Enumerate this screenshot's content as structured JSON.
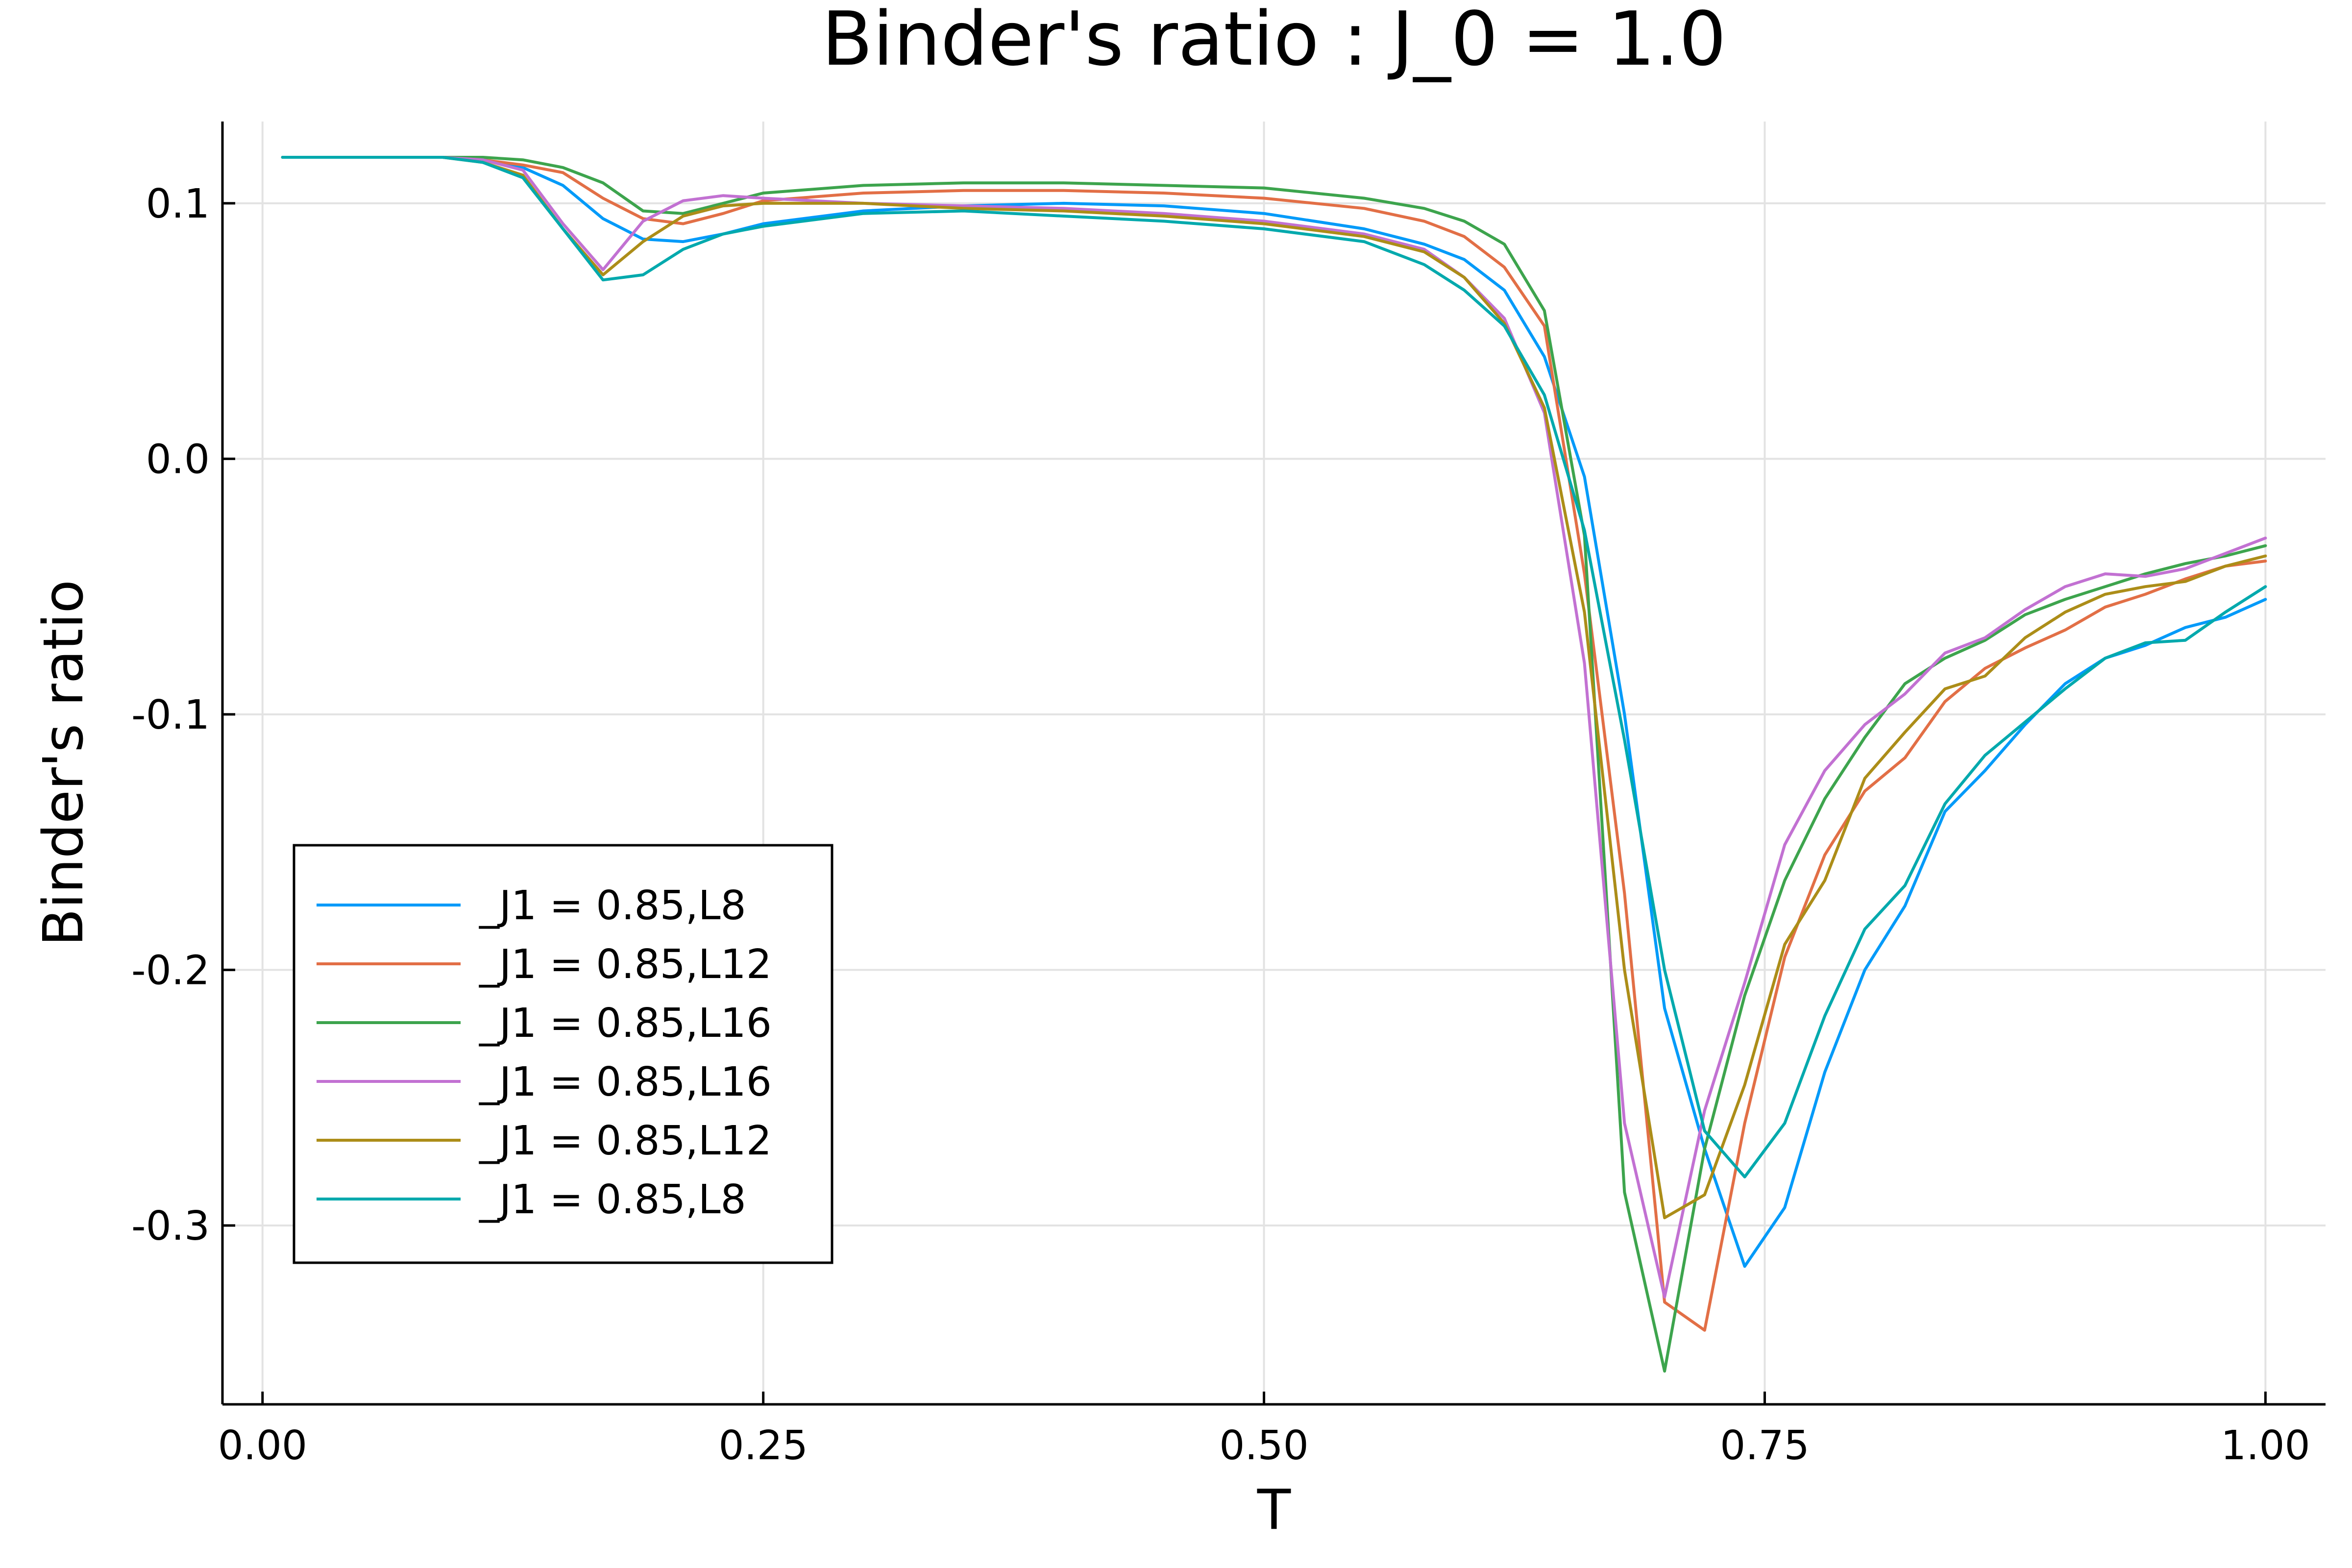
{
  "chart_data": {
    "type": "line",
    "title": "Binder's ratio : J_0 = 1.0",
    "xlabel": "T",
    "ylabel": "Binder's ratio",
    "xlim": [
      -0.02,
      1.03
    ],
    "ylim": [
      -0.37,
      0.132
    ],
    "xticks": [
      0.0,
      0.25,
      0.5,
      0.75,
      1.0
    ],
    "xtick_labels": [
      "0.00",
      "0.25",
      "0.50",
      "0.75",
      "1.00"
    ],
    "yticks": [
      0.1,
      0.0,
      -0.1,
      -0.2,
      -0.3
    ],
    "ytick_labels": [
      "0.1",
      "0.0",
      "-0.1",
      "-0.2",
      "-0.3"
    ],
    "grid": true,
    "legend_position": "bottom-left",
    "series": [
      {
        "name": "_J1 = 0.85,L8",
        "color": "#009af9",
        "x": [
          0.01,
          0.05,
          0.09,
          0.11,
          0.13,
          0.15,
          0.17,
          0.19,
          0.21,
          0.23,
          0.25,
          0.3,
          0.35,
          0.4,
          0.45,
          0.5,
          0.55,
          0.58,
          0.6,
          0.62,
          0.64,
          0.66,
          0.68,
          0.7,
          0.72,
          0.74,
          0.76,
          0.78,
          0.8,
          0.82,
          0.84,
          0.86,
          0.88,
          0.9,
          0.92,
          0.94,
          0.96,
          0.98,
          1.0
        ],
        "y": [
          0.118,
          0.118,
          0.118,
          0.117,
          0.114,
          0.107,
          0.094,
          0.086,
          0.085,
          0.088,
          0.092,
          0.097,
          0.099,
          0.1,
          0.099,
          0.096,
          0.09,
          0.084,
          0.078,
          0.066,
          0.04,
          -0.007,
          -0.1,
          -0.215,
          -0.27,
          -0.316,
          -0.293,
          -0.24,
          -0.2,
          -0.175,
          -0.138,
          -0.122,
          -0.104,
          -0.088,
          -0.078,
          -0.073,
          -0.066,
          -0.062,
          -0.055
        ]
      },
      {
        "name": "_J1 = 0.85,L12",
        "color": "#e26f46",
        "x": [
          0.01,
          0.05,
          0.09,
          0.11,
          0.13,
          0.15,
          0.17,
          0.19,
          0.21,
          0.23,
          0.25,
          0.3,
          0.35,
          0.4,
          0.45,
          0.5,
          0.55,
          0.58,
          0.6,
          0.62,
          0.64,
          0.66,
          0.68,
          0.7,
          0.72,
          0.74,
          0.76,
          0.78,
          0.8,
          0.82,
          0.84,
          0.86,
          0.88,
          0.9,
          0.92,
          0.94,
          0.96,
          0.98,
          1.0
        ],
        "y": [
          0.118,
          0.118,
          0.118,
          0.117,
          0.115,
          0.112,
          0.102,
          0.094,
          0.092,
          0.096,
          0.101,
          0.104,
          0.105,
          0.105,
          0.104,
          0.102,
          0.098,
          0.093,
          0.087,
          0.075,
          0.052,
          -0.045,
          -0.17,
          -0.33,
          -0.341,
          -0.26,
          -0.195,
          -0.155,
          -0.13,
          -0.117,
          -0.095,
          -0.082,
          -0.074,
          -0.067,
          -0.058,
          -0.053,
          -0.047,
          -0.042,
          -0.04
        ]
      },
      {
        "name": "_J1 = 0.85,L16",
        "color": "#3da44d",
        "x": [
          0.01,
          0.05,
          0.09,
          0.11,
          0.13,
          0.15,
          0.17,
          0.19,
          0.21,
          0.23,
          0.25,
          0.3,
          0.35,
          0.4,
          0.45,
          0.5,
          0.55,
          0.58,
          0.6,
          0.62,
          0.64,
          0.66,
          0.68,
          0.7,
          0.72,
          0.74,
          0.76,
          0.78,
          0.8,
          0.82,
          0.84,
          0.86,
          0.88,
          0.9,
          0.92,
          0.94,
          0.96,
          0.98,
          1.0
        ],
        "y": [
          0.118,
          0.118,
          0.118,
          0.118,
          0.117,
          0.114,
          0.108,
          0.097,
          0.096,
          0.1,
          0.104,
          0.107,
          0.108,
          0.108,
          0.107,
          0.106,
          0.102,
          0.098,
          0.093,
          0.084,
          0.058,
          -0.03,
          -0.287,
          -0.357,
          -0.27,
          -0.21,
          -0.165,
          -0.133,
          -0.109,
          -0.088,
          -0.078,
          -0.071,
          -0.061,
          -0.055,
          -0.05,
          -0.045,
          -0.041,
          -0.038,
          -0.034
        ]
      },
      {
        "name": "_J1 = 0.85,L16",
        "color": "#c271d2",
        "x": [
          0.01,
          0.05,
          0.09,
          0.11,
          0.13,
          0.15,
          0.17,
          0.19,
          0.21,
          0.23,
          0.25,
          0.3,
          0.35,
          0.4,
          0.45,
          0.5,
          0.55,
          0.58,
          0.6,
          0.62,
          0.64,
          0.66,
          0.68,
          0.7,
          0.72,
          0.74,
          0.76,
          0.78,
          0.8,
          0.82,
          0.84,
          0.86,
          0.88,
          0.9,
          0.92,
          0.94,
          0.96,
          0.98,
          1.0
        ],
        "y": [
          0.118,
          0.118,
          0.118,
          0.117,
          0.113,
          0.092,
          0.074,
          0.093,
          0.101,
          0.103,
          0.102,
          0.1,
          0.099,
          0.098,
          0.096,
          0.093,
          0.088,
          0.082,
          0.071,
          0.055,
          0.018,
          -0.08,
          -0.26,
          -0.328,
          -0.255,
          -0.205,
          -0.151,
          -0.122,
          -0.104,
          -0.092,
          -0.076,
          -0.07,
          -0.059,
          -0.05,
          -0.045,
          -0.046,
          -0.043,
          -0.037,
          -0.031
        ]
      },
      {
        "name": "_J1 = 0.85,L12",
        "color": "#ac8d18",
        "x": [
          0.01,
          0.05,
          0.09,
          0.11,
          0.13,
          0.15,
          0.17,
          0.19,
          0.21,
          0.23,
          0.25,
          0.3,
          0.35,
          0.4,
          0.45,
          0.5,
          0.55,
          0.58,
          0.6,
          0.62,
          0.64,
          0.66,
          0.68,
          0.7,
          0.72,
          0.74,
          0.76,
          0.78,
          0.8,
          0.82,
          0.84,
          0.86,
          0.88,
          0.9,
          0.92,
          0.94,
          0.96,
          0.98,
          1.0
        ],
        "y": [
          0.118,
          0.118,
          0.118,
          0.116,
          0.111,
          0.09,
          0.072,
          0.085,
          0.095,
          0.099,
          0.1,
          0.1,
          0.098,
          0.097,
          0.095,
          0.092,
          0.087,
          0.081,
          0.071,
          0.053,
          0.02,
          -0.06,
          -0.2,
          -0.297,
          -0.288,
          -0.245,
          -0.19,
          -0.165,
          -0.125,
          -0.107,
          -0.09,
          -0.085,
          -0.07,
          -0.06,
          -0.053,
          -0.05,
          -0.048,
          -0.042,
          -0.038
        ]
      },
      {
        "name": "_J1 = 0.85,L8",
        "color": "#00a9ad",
        "x": [
          0.01,
          0.05,
          0.09,
          0.11,
          0.13,
          0.15,
          0.17,
          0.19,
          0.21,
          0.23,
          0.25,
          0.3,
          0.35,
          0.4,
          0.45,
          0.5,
          0.55,
          0.58,
          0.6,
          0.62,
          0.64,
          0.66,
          0.68,
          0.7,
          0.72,
          0.74,
          0.76,
          0.78,
          0.8,
          0.82,
          0.84,
          0.86,
          0.88,
          0.9,
          0.92,
          0.94,
          0.96,
          0.98,
          1.0
        ],
        "y": [
          0.118,
          0.118,
          0.118,
          0.116,
          0.11,
          0.09,
          0.07,
          0.072,
          0.082,
          0.088,
          0.091,
          0.096,
          0.097,
          0.095,
          0.093,
          0.09,
          0.085,
          0.076,
          0.066,
          0.052,
          0.025,
          -0.028,
          -0.11,
          -0.2,
          -0.263,
          -0.281,
          -0.26,
          -0.218,
          -0.184,
          -0.167,
          -0.135,
          -0.116,
          -0.103,
          -0.09,
          -0.078,
          -0.072,
          -0.071,
          -0.06,
          -0.05
        ]
      }
    ]
  }
}
